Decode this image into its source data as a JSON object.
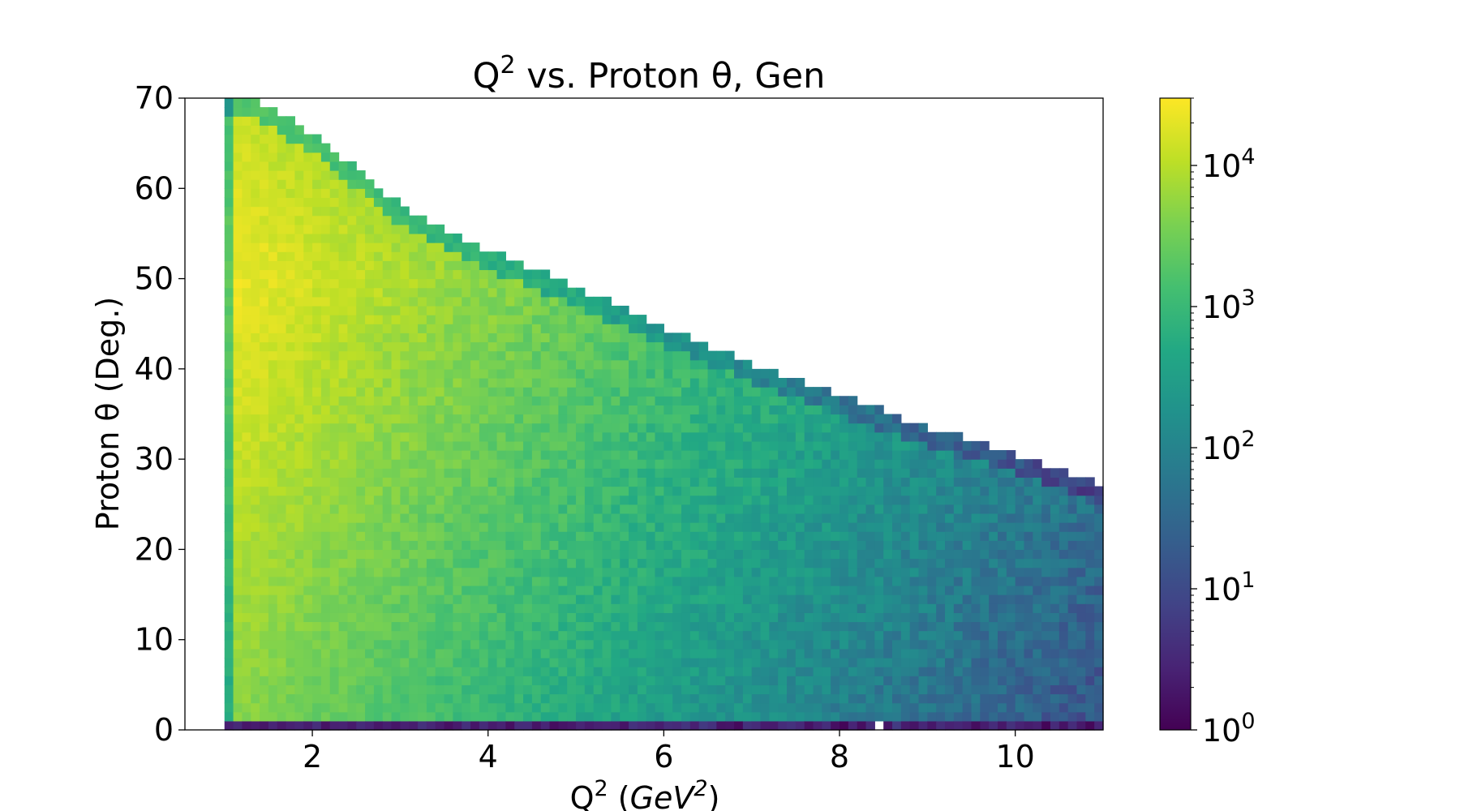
{
  "chart_data": {
    "type": "heatmap",
    "title": {
      "base": "Q",
      "sup": "2",
      "rest": " vs. Proton θ, Gen"
    },
    "xlabel": {
      "base": "Q",
      "sup": "2",
      "unit_open": " (",
      "unit_base": "GeV",
      "unit_sup": "2",
      "unit_close": ")"
    },
    "ylabel": "Proton θ (Deg.)",
    "xlim": [
      0.55,
      11.0
    ],
    "ylim": [
      0,
      70
    ],
    "x_ticks": [
      2,
      4,
      6,
      8,
      10
    ],
    "y_ticks": [
      0,
      10,
      20,
      30,
      40,
      50,
      60,
      70
    ],
    "x_tick_labels": [
      "2",
      "4",
      "6",
      "8",
      "10"
    ],
    "y_tick_labels": [
      "0",
      "10",
      "20",
      "30",
      "40",
      "50",
      "60",
      "70"
    ],
    "data_x_range": [
      1.0,
      11.0
    ],
    "colorscale": "viridis",
    "color_scale_type": "log",
    "color_range": [
      1,
      30000
    ],
    "colorbar_ticks": [
      {
        "base": "10",
        "exp": "0"
      },
      {
        "base": "10",
        "exp": "1"
      },
      {
        "base": "10",
        "exp": "2"
      },
      {
        "base": "10",
        "exp": "3"
      },
      {
        "base": "10",
        "exp": "4"
      }
    ],
    "upper_edge": {
      "q2": [
        1.0,
        1.3,
        2,
        3,
        4,
        5,
        6,
        7,
        8,
        9,
        10,
        11
      ],
      "theta_max": [
        70,
        70,
        66,
        58,
        53,
        49,
        44.5,
        40.5,
        37,
        33.5,
        30.5,
        27
      ]
    },
    "grid": false
  }
}
